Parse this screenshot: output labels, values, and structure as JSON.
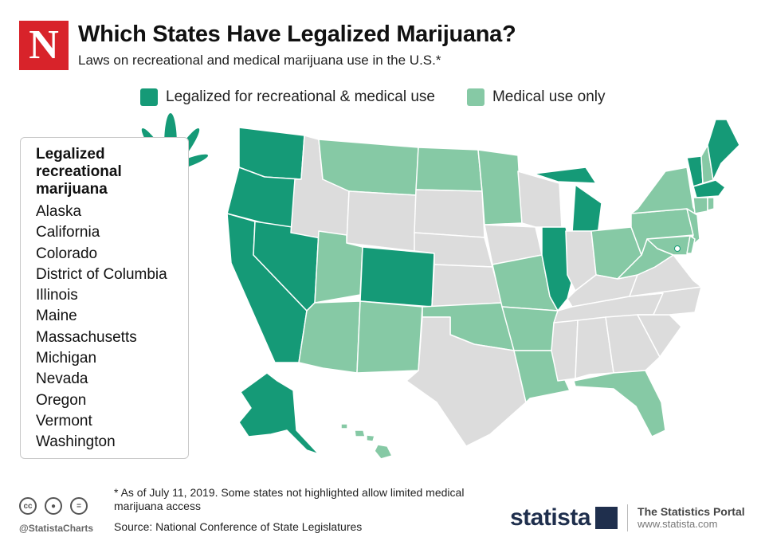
{
  "header": {
    "logo_letter": "N",
    "title": "Which States Have Legalized Marijuana?",
    "subtitle": "Laws on recreational and medical marijuana use in the U.S.*"
  },
  "legend": [
    {
      "label": "Legalized for recreational & medical use",
      "color": "#159a77"
    },
    {
      "label": "Medical use only",
      "color": "#86c9a5"
    }
  ],
  "map_colors": {
    "recreational": "#159a77",
    "medical": "#86c9a5",
    "none": "#dcdcdc",
    "border": "#ffffff"
  },
  "states": {
    "recreational": [
      "Alaska",
      "California",
      "Colorado",
      "District of Columbia",
      "Illinois",
      "Maine",
      "Massachusetts",
      "Michigan",
      "Nevada",
      "Oregon",
      "Vermont",
      "Washington"
    ],
    "medical": [
      "Montana",
      "North Dakota",
      "Minnesota",
      "Utah",
      "Arizona",
      "New Mexico",
      "Oklahoma",
      "Missouri",
      "Arkansas",
      "Louisiana",
      "Florida",
      "Ohio",
      "West Virginia",
      "Pennsylvania",
      "New York",
      "New Hampshire",
      "Connecticut",
      "Rhode Island",
      "New Jersey",
      "Delaware",
      "Maryland",
      "Hawaii"
    ]
  },
  "panel": {
    "heading": "Legalized recreational marijuana",
    "items": [
      "Alaska",
      "California",
      "Colorado",
      "District of Columbia",
      "Illinois",
      "Maine",
      "Massachusetts",
      "Michigan",
      "Nevada",
      "Oregon",
      "Vermont",
      "Washington"
    ]
  },
  "footer": {
    "footnote": "* As of July 11, 2019. Some states not highlighted allow limited medical marijuana access",
    "source": "Source: National Conference of State Legislatures",
    "handle": "@StatistaCharts",
    "brand": "statista",
    "portal_title": "The Statistics Portal",
    "portal_url": "www.statista.com",
    "cc_icons": [
      "creative-commons-icon",
      "attribution-icon",
      "no-derivatives-icon"
    ]
  }
}
